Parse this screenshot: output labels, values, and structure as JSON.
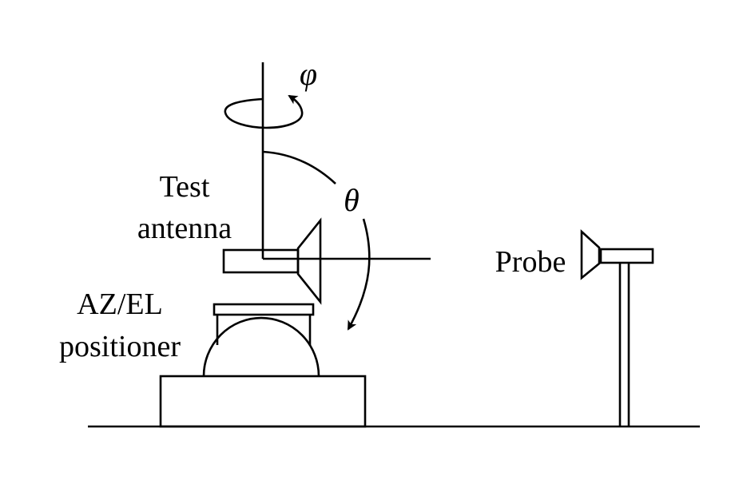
{
  "labels": {
    "test_antenna_line1": "Test",
    "test_antenna_line2": "antenna",
    "positioner_line1": "AZ/EL",
    "positioner_line2": "positioner",
    "probe": "Probe"
  },
  "symbols": {
    "phi": "φ",
    "theta": "θ"
  },
  "colors": {
    "ink": "#000000",
    "background": "#ffffff"
  }
}
